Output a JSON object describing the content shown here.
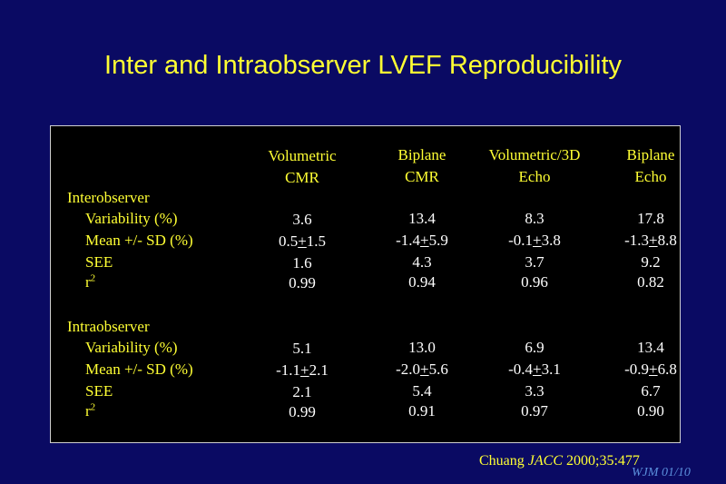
{
  "slide": {
    "title": "Inter and Intraobserver LVEF Reproducibility",
    "citation_author": "Chuang",
    "citation_journal": "JACC",
    "citation_ref": "2000;35:477",
    "initials": "WJM 01/10"
  },
  "table": {
    "columns": [
      {
        "line1": "Volumetric",
        "line2": "CMR"
      },
      {
        "line1": "Biplane",
        "line2": "CMR"
      },
      {
        "line1": "Volumetric/3D",
        "line2": "Echo"
      },
      {
        "line1": "Biplane",
        "line2": "Echo"
      }
    ],
    "groups": [
      {
        "name": "Interobserver",
        "rows": [
          {
            "label": "Variability (%)",
            "values": [
              {
                "text": "3.6"
              },
              {
                "text": "13.4"
              },
              {
                "text": "8.3"
              },
              {
                "text": "17.8"
              }
            ]
          },
          {
            "label": "Mean +/- SD (%)",
            "values": [
              {
                "a": "0.5",
                "pm": "+",
                "b": "1.5"
              },
              {
                "a": "-1.4",
                "pm": "+",
                "b": "5.9"
              },
              {
                "a": "-0.1",
                "pm": "+",
                "b": "3.8"
              },
              {
                "a": "-1.3",
                "pm": "+",
                "b": "8.8"
              }
            ]
          },
          {
            "label": "SEE",
            "values": [
              {
                "text": "1.6"
              },
              {
                "text": "4.3"
              },
              {
                "text": "3.7"
              },
              {
                "text": "9.2"
              }
            ]
          },
          {
            "label": "r",
            "label_sup": "2",
            "values": [
              {
                "text": "0.99"
              },
              {
                "text": "0.94"
              },
              {
                "text": "0.96"
              },
              {
                "text": "0.82"
              }
            ]
          }
        ]
      },
      {
        "name": "Intraobserver",
        "rows": [
          {
            "label": "Variability (%)",
            "values": [
              {
                "text": "5.1"
              },
              {
                "text": "13.0"
              },
              {
                "text": "6.9"
              },
              {
                "text": "13.4"
              }
            ]
          },
          {
            "label": "Mean +/- SD (%)",
            "values": [
              {
                "a": "-1.1",
                "pm": "+",
                "b": "2.1"
              },
              {
                "a": "-2.0",
                "pm": "+",
                "b": "5.6"
              },
              {
                "a": "-0.4",
                "pm": "+",
                "b": "3.1"
              },
              {
                "a": "-0.9",
                "pm": "+",
                "b": "6.8"
              }
            ]
          },
          {
            "label": "SEE",
            "values": [
              {
                "text": "2.1"
              },
              {
                "text": "5.4"
              },
              {
                "text": "3.3"
              },
              {
                "text": "6.7"
              }
            ]
          },
          {
            "label": "r",
            "label_sup": "2",
            "values": [
              {
                "text": "0.99"
              },
              {
                "text": "0.91"
              },
              {
                "text": "0.97"
              },
              {
                "text": "0.90"
              }
            ]
          }
        ]
      }
    ]
  },
  "colors": {
    "background": "#0a0a63",
    "table_background": "#000000",
    "title_text": "#ffff33",
    "value_text": "#ffffff",
    "initials_text": "#5b8fdc"
  }
}
